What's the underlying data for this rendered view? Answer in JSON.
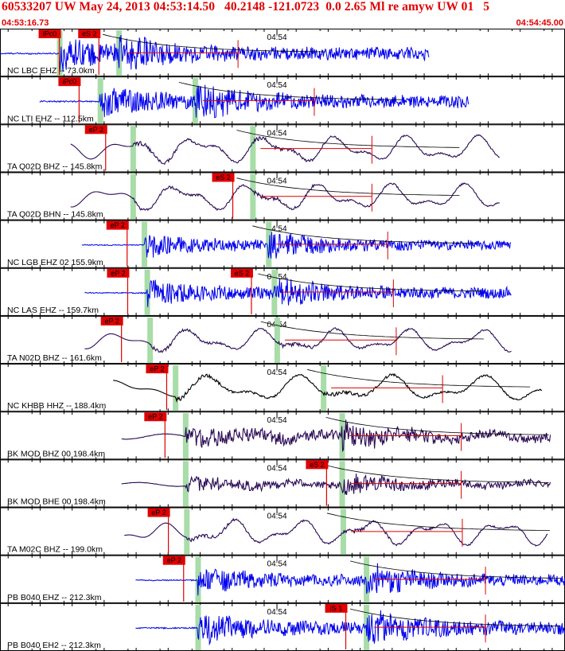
{
  "header": {
    "title": "60533207 UW May 24, 2013 04:53:14.50   40.2148 -121.0723  0.0 2.65 Ml re amyw UW 01   5",
    "start_time": "04:53:16.73",
    "end_time": "04:54:45.00"
  },
  "colors": {
    "header_text": "#e00000",
    "pick_box": "#e00000",
    "pick_line": "#e00000",
    "theoretical_band": "#a8dca8",
    "trace_blue": "#0000ee",
    "trace_purple": "#2a0a55",
    "trace_black": "#000000"
  },
  "chart_data": {
    "type": "line",
    "time_axis": {
      "start": "04:53:16.73",
      "end": "04:54:45.00",
      "major_tick_label": "04:54"
    },
    "traces": [
      {
        "label": "NC LBC EHZ -- 73.0km",
        "color": "blue",
        "kind": "hf",
        "start": 0.0,
        "end": 0.76,
        "p": 0.105,
        "s": 0.21,
        "amp": 0.35,
        "picks": [
          {
            "text": "iPc0",
            "t": 0.105
          },
          {
            "text": "eS 2",
            "t": 0.175
          }
        ]
      },
      {
        "label": "NC LTI EHZ -- 112.5km",
        "color": "blue",
        "kind": "hf",
        "start": 0.07,
        "end": 0.83,
        "p": 0.177,
        "s": 0.345,
        "amp": 0.35,
        "picks": [
          {
            "text": "iPc0",
            "t": 0.14
          }
        ]
      },
      {
        "label": "TA Q02D BHZ -- 145.8km",
        "color": "purple",
        "kind": "lf",
        "start": 0.125,
        "end": 0.885,
        "p": 0.235,
        "s": 0.447,
        "amp": 0.4,
        "picks": [
          {
            "text": "eP 2",
            "t": 0.187
          }
        ]
      },
      {
        "label": "TA Q02D BHN -- 145.8km",
        "color": "purple",
        "kind": "lf",
        "start": 0.125,
        "end": 0.885,
        "p": 0.235,
        "s": 0.447,
        "amp": 0.4,
        "picks": [
          {
            "text": "eS 2",
            "t": 0.412
          }
        ]
      },
      {
        "label": "NC LGB EHZ 02 155.9km",
        "color": "blue",
        "kind": "hf",
        "start": 0.145,
        "end": 0.905,
        "p": 0.255,
        "s": 0.475,
        "amp": 0.26,
        "picks": [
          {
            "text": "eP 2",
            "t": 0.225
          }
        ]
      },
      {
        "label": "NC LAS EHZ -- 159.7km",
        "color": "blue",
        "kind": "hf",
        "start": 0.15,
        "end": 0.905,
        "p": 0.26,
        "s": 0.485,
        "amp": 0.3,
        "picks": [
          {
            "text": "eP 2",
            "t": 0.226
          },
          {
            "text": "eS 2",
            "t": 0.445
          }
        ]
      },
      {
        "label": "TA N02D BHZ -- 161.6km",
        "color": "purple",
        "kind": "lf",
        "start": 0.15,
        "end": 0.905,
        "p": 0.265,
        "s": 0.49,
        "amp": 0.35,
        "picks": [
          {
            "text": "eP 2",
            "t": 0.215
          }
        ]
      },
      {
        "label": "NC KHBB HHZ -- 188.4km",
        "color": "black",
        "kind": "lf",
        "start": 0.2,
        "end": 0.96,
        "p": 0.31,
        "s": 0.572,
        "amp": 0.4,
        "picks": [
          {
            "text": "eP 2",
            "t": 0.295
          }
        ]
      },
      {
        "label": "BK MOD BHZ 00 198.4km",
        "color": "purple",
        "kind": "mixed",
        "start": 0.215,
        "end": 0.975,
        "p": 0.328,
        "s": 0.605,
        "amp": 0.22,
        "picks": [
          {
            "text": "eP 2",
            "t": 0.292
          }
        ]
      },
      {
        "label": "BK MOD BHE 00 198.4km",
        "color": "purple",
        "kind": "mixed",
        "start": 0.215,
        "end": 0.975,
        "p": 0.328,
        "s": 0.605,
        "amp": 0.16,
        "picks": [
          {
            "text": "eS 2",
            "t": 0.578
          }
        ]
      },
      {
        "label": "TA M02C BHZ -- 199.0km",
        "color": "purple",
        "kind": "lf",
        "start": 0.22,
        "end": 0.97,
        "p": 0.33,
        "s": 0.607,
        "amp": 0.38,
        "picks": [
          {
            "text": "eP 2",
            "t": 0.298
          }
        ]
      },
      {
        "label": "PB B040 EHZ -- 212.3km",
        "color": "blue",
        "kind": "hf",
        "start": 0.24,
        "end": 1.0,
        "p": 0.35,
        "s": 0.648,
        "amp": 0.3,
        "picks": [
          {
            "text": "eP 2",
            "t": 0.325
          }
        ]
      },
      {
        "label": "PB B040 EH2 -- 212.3km",
        "color": "blue",
        "kind": "hf",
        "start": 0.24,
        "end": 1.0,
        "p": 0.35,
        "s": 0.648,
        "amp": 0.34,
        "picks": [
          {
            "text": "iS 1",
            "t": 0.612
          }
        ]
      }
    ]
  }
}
